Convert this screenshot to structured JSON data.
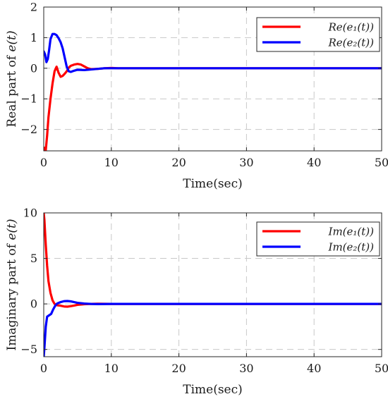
{
  "chart_data": [
    {
      "type": "line",
      "title": "",
      "xlabel": "Time(sec)",
      "ylabel": "Real part of e(t)",
      "xlim": [
        0,
        50
      ],
      "ylim": [
        -2.7,
        2
      ],
      "xticks": [
        0,
        10,
        20,
        30,
        40,
        50
      ],
      "yticks": [
        -2,
        -1,
        0,
        1,
        2
      ],
      "grid": true,
      "legend_position": "top-right",
      "series": [
        {
          "name": "Re(e1(t))",
          "color": "#ff0000",
          "x": [
            0,
            0.1,
            0.3,
            0.5,
            0.7,
            1.0,
            1.3,
            1.6,
            1.9,
            2.2,
            2.5,
            2.8,
            3.1,
            3.4,
            3.7,
            4.0,
            4.5,
            5.0,
            5.5,
            6.0,
            6.5,
            7.0,
            8.0,
            9.0,
            10.0,
            11.0,
            12.0,
            50
          ],
          "y": [
            -2.7,
            -2.6,
            -2.68,
            -2.2,
            -1.6,
            -1.0,
            -0.5,
            -0.1,
            0.05,
            -0.15,
            -0.28,
            -0.25,
            -0.18,
            -0.1,
            0.02,
            0.08,
            0.12,
            0.14,
            0.12,
            0.06,
            0.0,
            -0.03,
            -0.02,
            0.0,
            0.01,
            0.0,
            0.0,
            0.0
          ]
        },
        {
          "name": "Re(e2(t))",
          "color": "#0000ff",
          "x": [
            0,
            0.2,
            0.4,
            0.6,
            0.8,
            1.0,
            1.3,
            1.6,
            1.9,
            2.2,
            2.5,
            2.8,
            3.1,
            3.4,
            3.7,
            4.0,
            4.5,
            5.0,
            6.0,
            7.0,
            8.0,
            9.0,
            10.0,
            11.0,
            50
          ],
          "y": [
            0.55,
            0.45,
            0.2,
            0.3,
            0.6,
            0.95,
            1.12,
            1.12,
            1.08,
            0.98,
            0.85,
            0.65,
            0.35,
            0.05,
            -0.1,
            -0.12,
            -0.08,
            -0.05,
            -0.06,
            -0.04,
            -0.02,
            0.0,
            0.0,
            0.0,
            0.0
          ]
        }
      ]
    },
    {
      "type": "line",
      "title": "",
      "xlabel": "Time(sec)",
      "ylabel": "Imaginary part of e(t)",
      "xlim": [
        0,
        50
      ],
      "ylim": [
        -5.8,
        10
      ],
      "xticks": [
        0,
        10,
        20,
        30,
        40,
        50
      ],
      "yticks": [
        -5,
        0,
        5,
        10
      ],
      "grid": true,
      "legend_position": "top-right",
      "series": [
        {
          "name": "Im(e1(t))",
          "color": "#ff0000",
          "x": [
            0,
            0.1,
            0.3,
            0.5,
            0.7,
            1.0,
            1.3,
            1.6,
            2.0,
            2.5,
            3.0,
            3.5,
            4.0,
            4.5,
            5.0,
            6.0,
            7.0,
            8.0,
            10.0,
            50
          ],
          "y": [
            10,
            9.2,
            6.5,
            4.2,
            2.5,
            1.2,
            0.4,
            0.0,
            -0.15,
            -0.2,
            -0.28,
            -0.3,
            -0.25,
            -0.18,
            -0.1,
            -0.03,
            0.0,
            0.02,
            0.0,
            0.0
          ]
        },
        {
          "name": "Im(e2(t))",
          "color": "#0000ff",
          "x": [
            0,
            0.1,
            0.3,
            0.5,
            0.8,
            1.1,
            1.4,
            1.7,
            2.0,
            2.5,
            3.0,
            3.5,
            4.0,
            4.5,
            5.0,
            6.0,
            7.0,
            8.0,
            10.0,
            50
          ],
          "y": [
            -5.8,
            -4.8,
            -2.5,
            -1.4,
            -1.25,
            -1.1,
            -0.6,
            -0.2,
            0.05,
            0.2,
            0.3,
            0.32,
            0.28,
            0.2,
            0.12,
            0.04,
            0.0,
            -0.02,
            0.0,
            0.0
          ]
        }
      ]
    }
  ]
}
